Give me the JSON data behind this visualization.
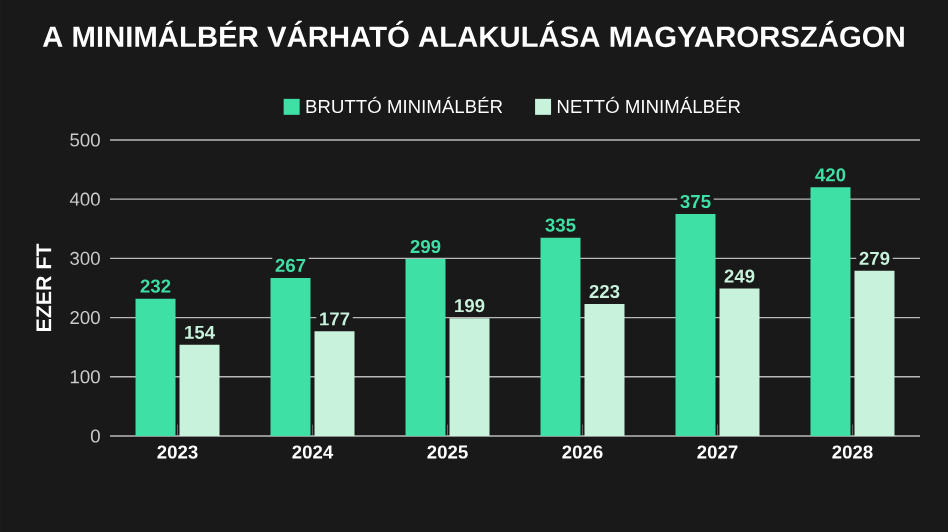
{
  "chart_data": {
    "type": "bar",
    "title": "A MINIMÁLBÉR VÁRHATÓ ALAKULÁSA MAGYARORSZÁGON",
    "ylabel": "EZER FT",
    "categories": [
      "2023",
      "2024",
      "2025",
      "2026",
      "2027",
      "2028"
    ],
    "series": [
      {
        "name": "BRUTTÓ MINIMÁLBÉR",
        "color": "#3ee0a6",
        "values": [
          232,
          267,
          299,
          335,
          375,
          420
        ]
      },
      {
        "name": "NETTÓ MINIMÁLBÉR",
        "color": "#c9f2dc",
        "values": [
          154,
          177,
          199,
          223,
          249,
          279
        ]
      }
    ],
    "ylim": [
      0,
      500
    ],
    "yticks": [
      0,
      100,
      200,
      300,
      400,
      500
    ],
    "grid": "y",
    "legend": "top",
    "data_labels": true
  }
}
